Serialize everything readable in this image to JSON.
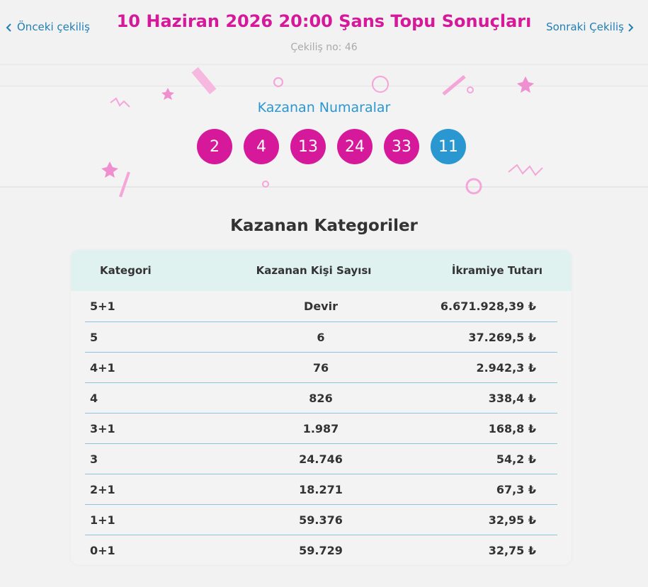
{
  "header": {
    "prev_link": "Önceki çekiliş",
    "title": "10 Haziran 2026 20:00 Şans Topu Sonuçları",
    "next_link": "Sonraki Çekiliş",
    "draw_no": "Çekiliş no: 46"
  },
  "winning_numbers": {
    "title": "Kazanan Numaralar",
    "main": [
      2,
      4,
      13,
      24,
      33
    ],
    "bonus": 11
  },
  "table": {
    "title": "Kazanan Kategoriler",
    "columns": [
      "Kategori",
      "Kazanan Kişi Sayısı",
      "İkramiye Tutarı"
    ],
    "rows": [
      [
        "5+1",
        "Devir",
        "6.671.928,39 ₺"
      ],
      [
        "5",
        "6",
        "37.269,5 ₺"
      ],
      [
        "4+1",
        "76",
        "2.942,3 ₺"
      ],
      [
        "4",
        "826",
        "338,4 ₺"
      ],
      [
        "3+1",
        "1.987",
        "168,8 ₺"
      ],
      [
        "3",
        "24.746",
        "54,2 ₺"
      ],
      [
        "2+1",
        "18.271",
        "67,3 ₺"
      ],
      [
        "1+1",
        "59.376",
        "32,95 ₺"
      ],
      [
        "0+1",
        "59.729",
        "32,75 ₺"
      ]
    ]
  }
}
